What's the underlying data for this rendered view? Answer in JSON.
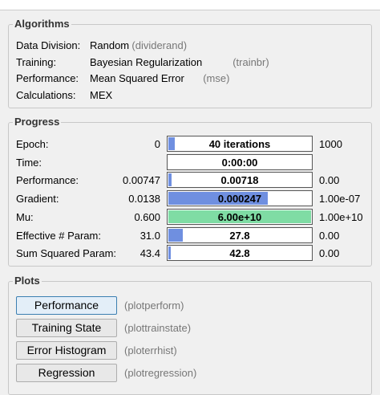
{
  "algorithms": {
    "title": "Algorithms",
    "rows": [
      {
        "label": "Data Division:",
        "value": "Random",
        "function": "(dividerand)"
      },
      {
        "label": "Training:",
        "value": "Bayesian Regularization",
        "function": "(trainbr)"
      },
      {
        "label": "Performance:",
        "value": "Mean Squared Error",
        "function": "(mse)"
      },
      {
        "label": "Calculations:",
        "value": "MEX"
      }
    ]
  },
  "progress": {
    "title": "Progress",
    "rows": [
      {
        "label": "Epoch:",
        "start": "0",
        "current": "40 iterations",
        "end": "1000"
      },
      {
        "label": "Time:",
        "current": "0:00:00"
      },
      {
        "label": "Performance:",
        "start": "0.00747",
        "current": "0.00718",
        "end": "0.00"
      },
      {
        "label": "Gradient:",
        "start": "0.0138",
        "current": "0.000247",
        "end": "1.00e-07"
      },
      {
        "label": "Mu:",
        "start": "0.600",
        "current": "6.00e+10",
        "end": "1.00e+10"
      },
      {
        "label": "Effective # Param:",
        "start": "31.0",
        "current": "27.8",
        "end": "0.00"
      },
      {
        "label": "Sum Squared Param:",
        "start": "43.4",
        "current": "42.8",
        "end": "0.00"
      }
    ]
  },
  "plots": {
    "title": "Plots",
    "buttons": [
      {
        "label": "Performance",
        "function": "(plotperform)"
      },
      {
        "label": "Training State",
        "function": "(plottrainstate)"
      },
      {
        "label": "Error Histogram",
        "function": "(ploterrhist)"
      },
      {
        "label": "Regression",
        "function": "(plotregression)"
      }
    ]
  }
}
